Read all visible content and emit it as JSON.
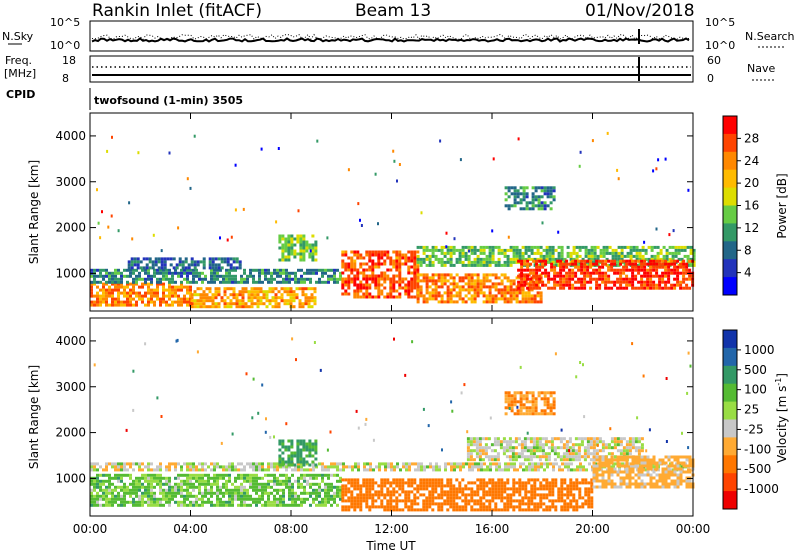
{
  "header": {
    "station": "Rankin Inlet (fitACF)",
    "beam": "Beam 13",
    "date": "01/Nov/2018"
  },
  "top_panels": {
    "nsky_label": "N.Sky",
    "nsearch_label": "N.Search",
    "nsky_ticks": [
      "10^5",
      "10^0"
    ],
    "nsearch_ticks": [
      "10^5",
      "10^0"
    ],
    "freq_label": "Freq.",
    "freq_unit": "[MHz]",
    "freq_ticks": [
      "18",
      "8"
    ],
    "nave_label": "Nave",
    "nave_ticks": [
      "60",
      "0"
    ],
    "cpid_label": "CPID",
    "cpid_text": "twofsound (1-min) 3505"
  },
  "chart_data": [
    {
      "type": "heatmap",
      "panel": "power",
      "ylabel": "Slant Range [km]",
      "xlabel": "Time UT",
      "xlim": [
        0,
        24
      ],
      "ylim": [
        180,
        4500
      ],
      "yticks": [
        1000,
        2000,
        3000,
        4000
      ],
      "xticks": [
        "00:00",
        "04:00",
        "08:00",
        "12:00",
        "16:00",
        "20:00",
        "00:00"
      ],
      "colorbar": {
        "label": "Power [dB]",
        "ticks": [
          "28",
          "24",
          "20",
          "16",
          "12",
          "8",
          "4"
        ],
        "colors": [
          "#ff0000",
          "#ff4400",
          "#ff8800",
          "#ffbb00",
          "#dddd00",
          "#66cc44",
          "#339966",
          "#226688",
          "#2233bb",
          "#0000ff"
        ]
      },
      "regions": [
        {
          "t0": 0.0,
          "t1": 4.0,
          "r0": 300,
          "r1": 800,
          "value": 24
        },
        {
          "t0": 4.0,
          "t1": 9.0,
          "r0": 300,
          "r1": 700,
          "value": 22
        },
        {
          "t0": 0.0,
          "t1": 10.0,
          "r0": 800,
          "r1": 1100,
          "value": 10
        },
        {
          "t0": 1.5,
          "t1": 6.0,
          "r0": 1150,
          "r1": 1350,
          "value": 8
        },
        {
          "t0": 7.5,
          "t1": 9.0,
          "r0": 1300,
          "r1": 1850,
          "value": 14
        },
        {
          "t0": 10.0,
          "t1": 13.0,
          "r0": 500,
          "r1": 1500,
          "value": 26
        },
        {
          "t0": 13.0,
          "t1": 18.0,
          "r0": 400,
          "r1": 1000,
          "value": 24
        },
        {
          "t0": 13.0,
          "t1": 24.0,
          "r0": 1200,
          "r1": 1600,
          "value": 14
        },
        {
          "t0": 17.0,
          "t1": 24.0,
          "r0": 700,
          "r1": 1300,
          "value": 28
        },
        {
          "t0": 16.5,
          "t1": 18.5,
          "r0": 2400,
          "r1": 2900,
          "value": 10
        }
      ]
    },
    {
      "type": "heatmap",
      "panel": "velocity",
      "ylabel": "Slant Range [km]",
      "xlabel": "Time UT",
      "xlim": [
        0,
        24
      ],
      "ylim": [
        180,
        4500
      ],
      "yticks": [
        1000,
        2000,
        3000,
        4000
      ],
      "xticks": [
        "00:00",
        "04:00",
        "08:00",
        "12:00",
        "16:00",
        "20:00",
        "00:00"
      ],
      "colorbar": {
        "label": "Velocity [m s^-1]",
        "ticks": [
          "1000",
          "500",
          "100",
          "25",
          "-25",
          "-100",
          "-500",
          "-1000"
        ],
        "colors": [
          "#1133aa",
          "#2266aa",
          "#339966",
          "#55bb33",
          "#99dd44",
          "#c8c8c8",
          "#ffaa33",
          "#ff7700",
          "#ff4400",
          "#ee0000"
        ]
      },
      "regions": [
        {
          "t0": 0.0,
          "t1": 10.0,
          "r0": 400,
          "r1": 1100,
          "value": 100
        },
        {
          "t0": 0.0,
          "t1": 24.0,
          "r0": 1200,
          "r1": 1350,
          "value": 0
        },
        {
          "t0": 7.5,
          "t1": 9.0,
          "r0": 1300,
          "r1": 1850,
          "value": 200
        },
        {
          "t0": 10.0,
          "t1": 20.0,
          "r0": 300,
          "r1": 1000,
          "value": -300
        },
        {
          "t0": 15.0,
          "t1": 22.0,
          "r0": 1400,
          "r1": 1900,
          "value": 0
        },
        {
          "t0": 20.0,
          "t1": 24.0,
          "r0": 800,
          "r1": 1500,
          "value": -100
        },
        {
          "t0": 16.5,
          "t1": 18.5,
          "r0": 2400,
          "r1": 2900,
          "value": -200
        }
      ]
    }
  ]
}
